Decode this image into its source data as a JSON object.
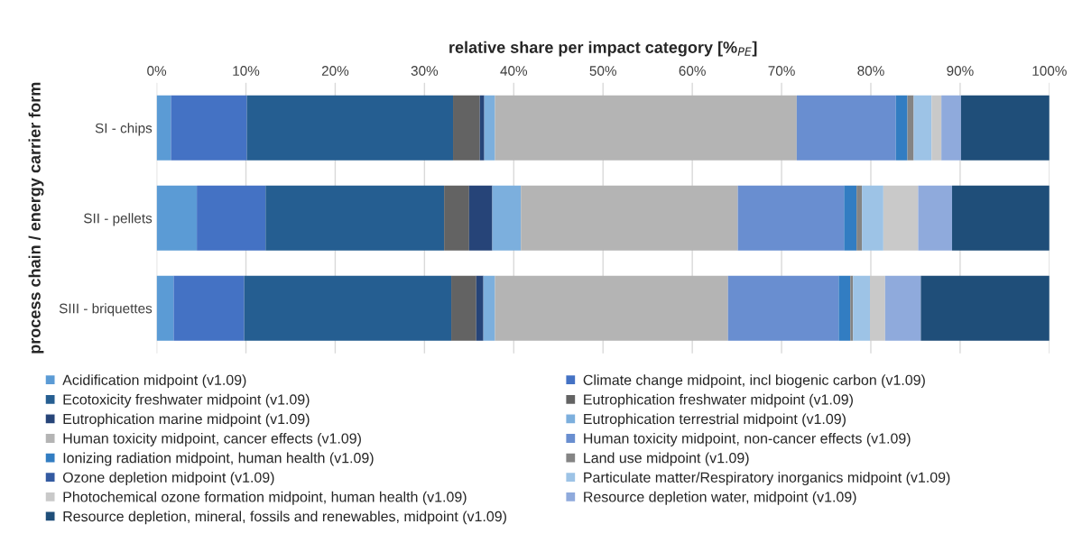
{
  "chart_data": {
    "type": "bar",
    "orientation": "horizontal",
    "stacked": true,
    "xlabel": "relative share per impact category [%$_{PE}$]",
    "ylabel": "process chain / energy carrier form",
    "categories": [
      "SI - chips",
      "SII - pellets",
      "SIII - briquettes"
    ],
    "xlim": [
      0,
      100
    ],
    "xticks": [
      {
        "value": 0,
        "label": "0%"
      },
      {
        "value": 10,
        "label": "10%"
      },
      {
        "value": 20,
        "label": "20%"
      },
      {
        "value": 30,
        "label": "30%"
      },
      {
        "value": 40,
        "label": "40%"
      },
      {
        "value": 50,
        "label": "50%"
      },
      {
        "value": 60,
        "label": "60%"
      },
      {
        "value": 70,
        "label": "70%"
      },
      {
        "value": 80,
        "label": "80%"
      },
      {
        "value": 90,
        "label": "90%"
      },
      {
        "value": 100,
        "label": "100%"
      }
    ],
    "grid": "x",
    "legend": "bottom",
    "series": [
      {
        "name": "Acidification midpoint (v1.09)",
        "color": "#5b9bd5",
        "values": [
          1.6,
          4.5,
          1.9
        ]
      },
      {
        "name": "Climate change midpoint, incl biogenic carbon (v1.09)",
        "color": "#4472c4",
        "values": [
          8.5,
          7.7,
          7.9
        ]
      },
      {
        "name": "Ecotoxicity freshwater midpoint (v1.09)",
        "color": "#255e91",
        "values": [
          23.1,
          20.0,
          23.2
        ]
      },
      {
        "name": "Eutrophication freshwater midpoint (v1.09)",
        "color": "#636363",
        "values": [
          3.0,
          2.8,
          2.8
        ]
      },
      {
        "name": "Eutrophication marine midpoint (v1.09)",
        "color": "#264478",
        "values": [
          0.5,
          2.6,
          0.8
        ]
      },
      {
        "name": "Eutrophication terrestrial midpoint (v1.09)",
        "color": "#7cafdd",
        "values": [
          1.2,
          3.2,
          1.3
        ]
      },
      {
        "name": "Human toxicity midpoint, cancer effects (v1.09)",
        "color": "#b4b4b4",
        "values": [
          33.8,
          24.3,
          26.1
        ]
      },
      {
        "name": "Human toxicity midpoint, non-cancer effects (v1.09)",
        "color": "#698ed0",
        "values": [
          11.1,
          11.9,
          12.4
        ]
      },
      {
        "name": "Ionizing radiation midpoint, human health (v1.09)",
        "color": "#327dc2",
        "values": [
          1.3,
          1.4,
          1.3
        ]
      },
      {
        "name": "Land use midpoint (v1.09)",
        "color": "#848484",
        "values": [
          0.7,
          0.6,
          0.3
        ]
      },
      {
        "name": "Ozone depletion midpoint (v1.09)",
        "color": "#335aa1",
        "values": [
          0,
          0,
          0
        ]
      },
      {
        "name": "Particulate matter/Respiratory inorganics midpoint (v1.09)",
        "color": "#9dc3e6",
        "values": [
          2.0,
          2.4,
          1.9
        ]
      },
      {
        "name": "Photochemical ozone formation midpoint, human health (v1.09)",
        "color": "#c9c9c9",
        "values": [
          1.1,
          3.9,
          1.7
        ]
      },
      {
        "name": "Resource depletion water, midpoint (v1.09)",
        "color": "#8faadc",
        "values": [
          2.2,
          3.8,
          4.0
        ]
      },
      {
        "name": "Resource depletion, mineral, fossils and renewables, midpoint (v1.09)",
        "color": "#1f4e79",
        "values": [
          9.9,
          10.9,
          14.4
        ]
      }
    ]
  }
}
